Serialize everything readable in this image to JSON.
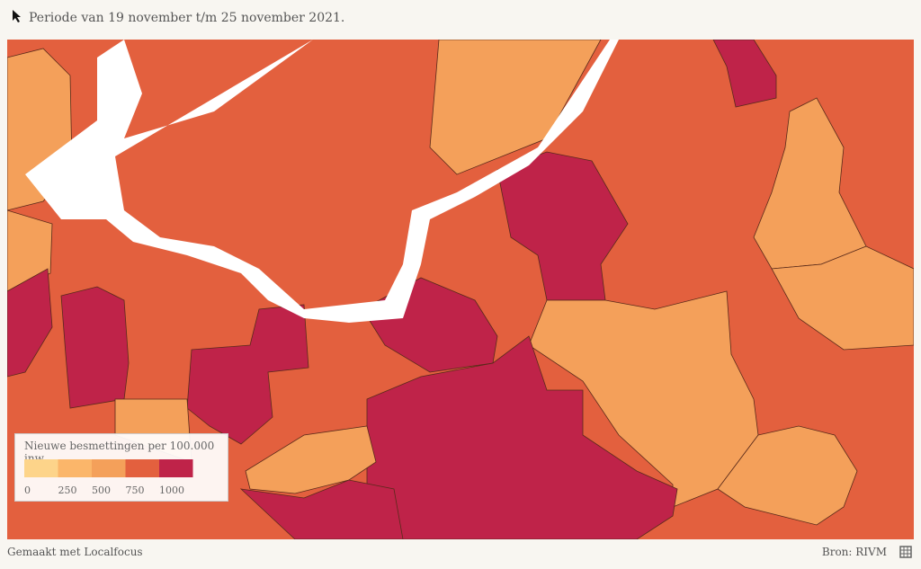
{
  "header": {
    "title": "Periode van 19 november t/m 25 november 2021."
  },
  "legend": {
    "title": "Nieuwe besmettingen per 100.000 inw.",
    "colors": [
      "#fdd48a",
      "#fbb66a",
      "#f4a05a",
      "#e3603e",
      "#bf2349"
    ],
    "ticks": [
      0,
      250,
      500,
      750,
      1000
    ]
  },
  "footer": {
    "credit": "Gemaakt met Localfocus",
    "source": "Bron: RIVM"
  }
}
